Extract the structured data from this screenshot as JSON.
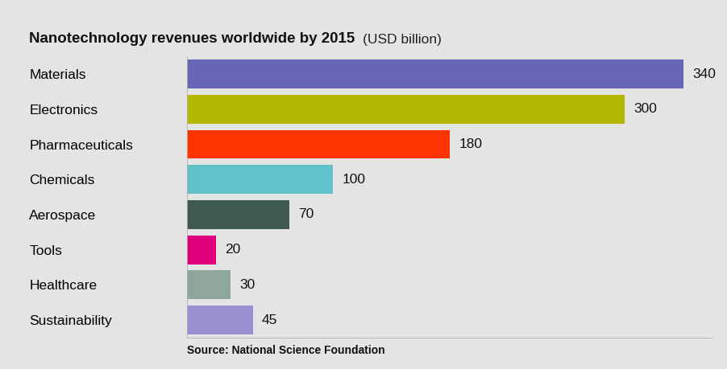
{
  "chart_data": {
    "type": "bar",
    "orientation": "horizontal",
    "title": "Nanotechnology revenues worldwide by 2015",
    "subtitle": "(USD billion)",
    "annotations": [
      "Source: National Science Foundation"
    ],
    "categories": [
      "Materials",
      "Electronics",
      "Pharmaceuticals",
      "Chemicals",
      "Aerospace",
      "Tools",
      "Healthcare",
      "Sustainability"
    ],
    "values": [
      340,
      300,
      180,
      100,
      70,
      20,
      30,
      45
    ],
    "colors": [
      "#6a66b6",
      "#b3b700",
      "#ff3300",
      "#5ec2c8",
      "#3f5a50",
      "#e0007c",
      "#8fa79b",
      "#9a8fd0"
    ],
    "xlim": [
      0,
      360
    ],
    "xticks": [],
    "tick_labels": "y",
    "data_labels": true,
    "grid": false
  }
}
